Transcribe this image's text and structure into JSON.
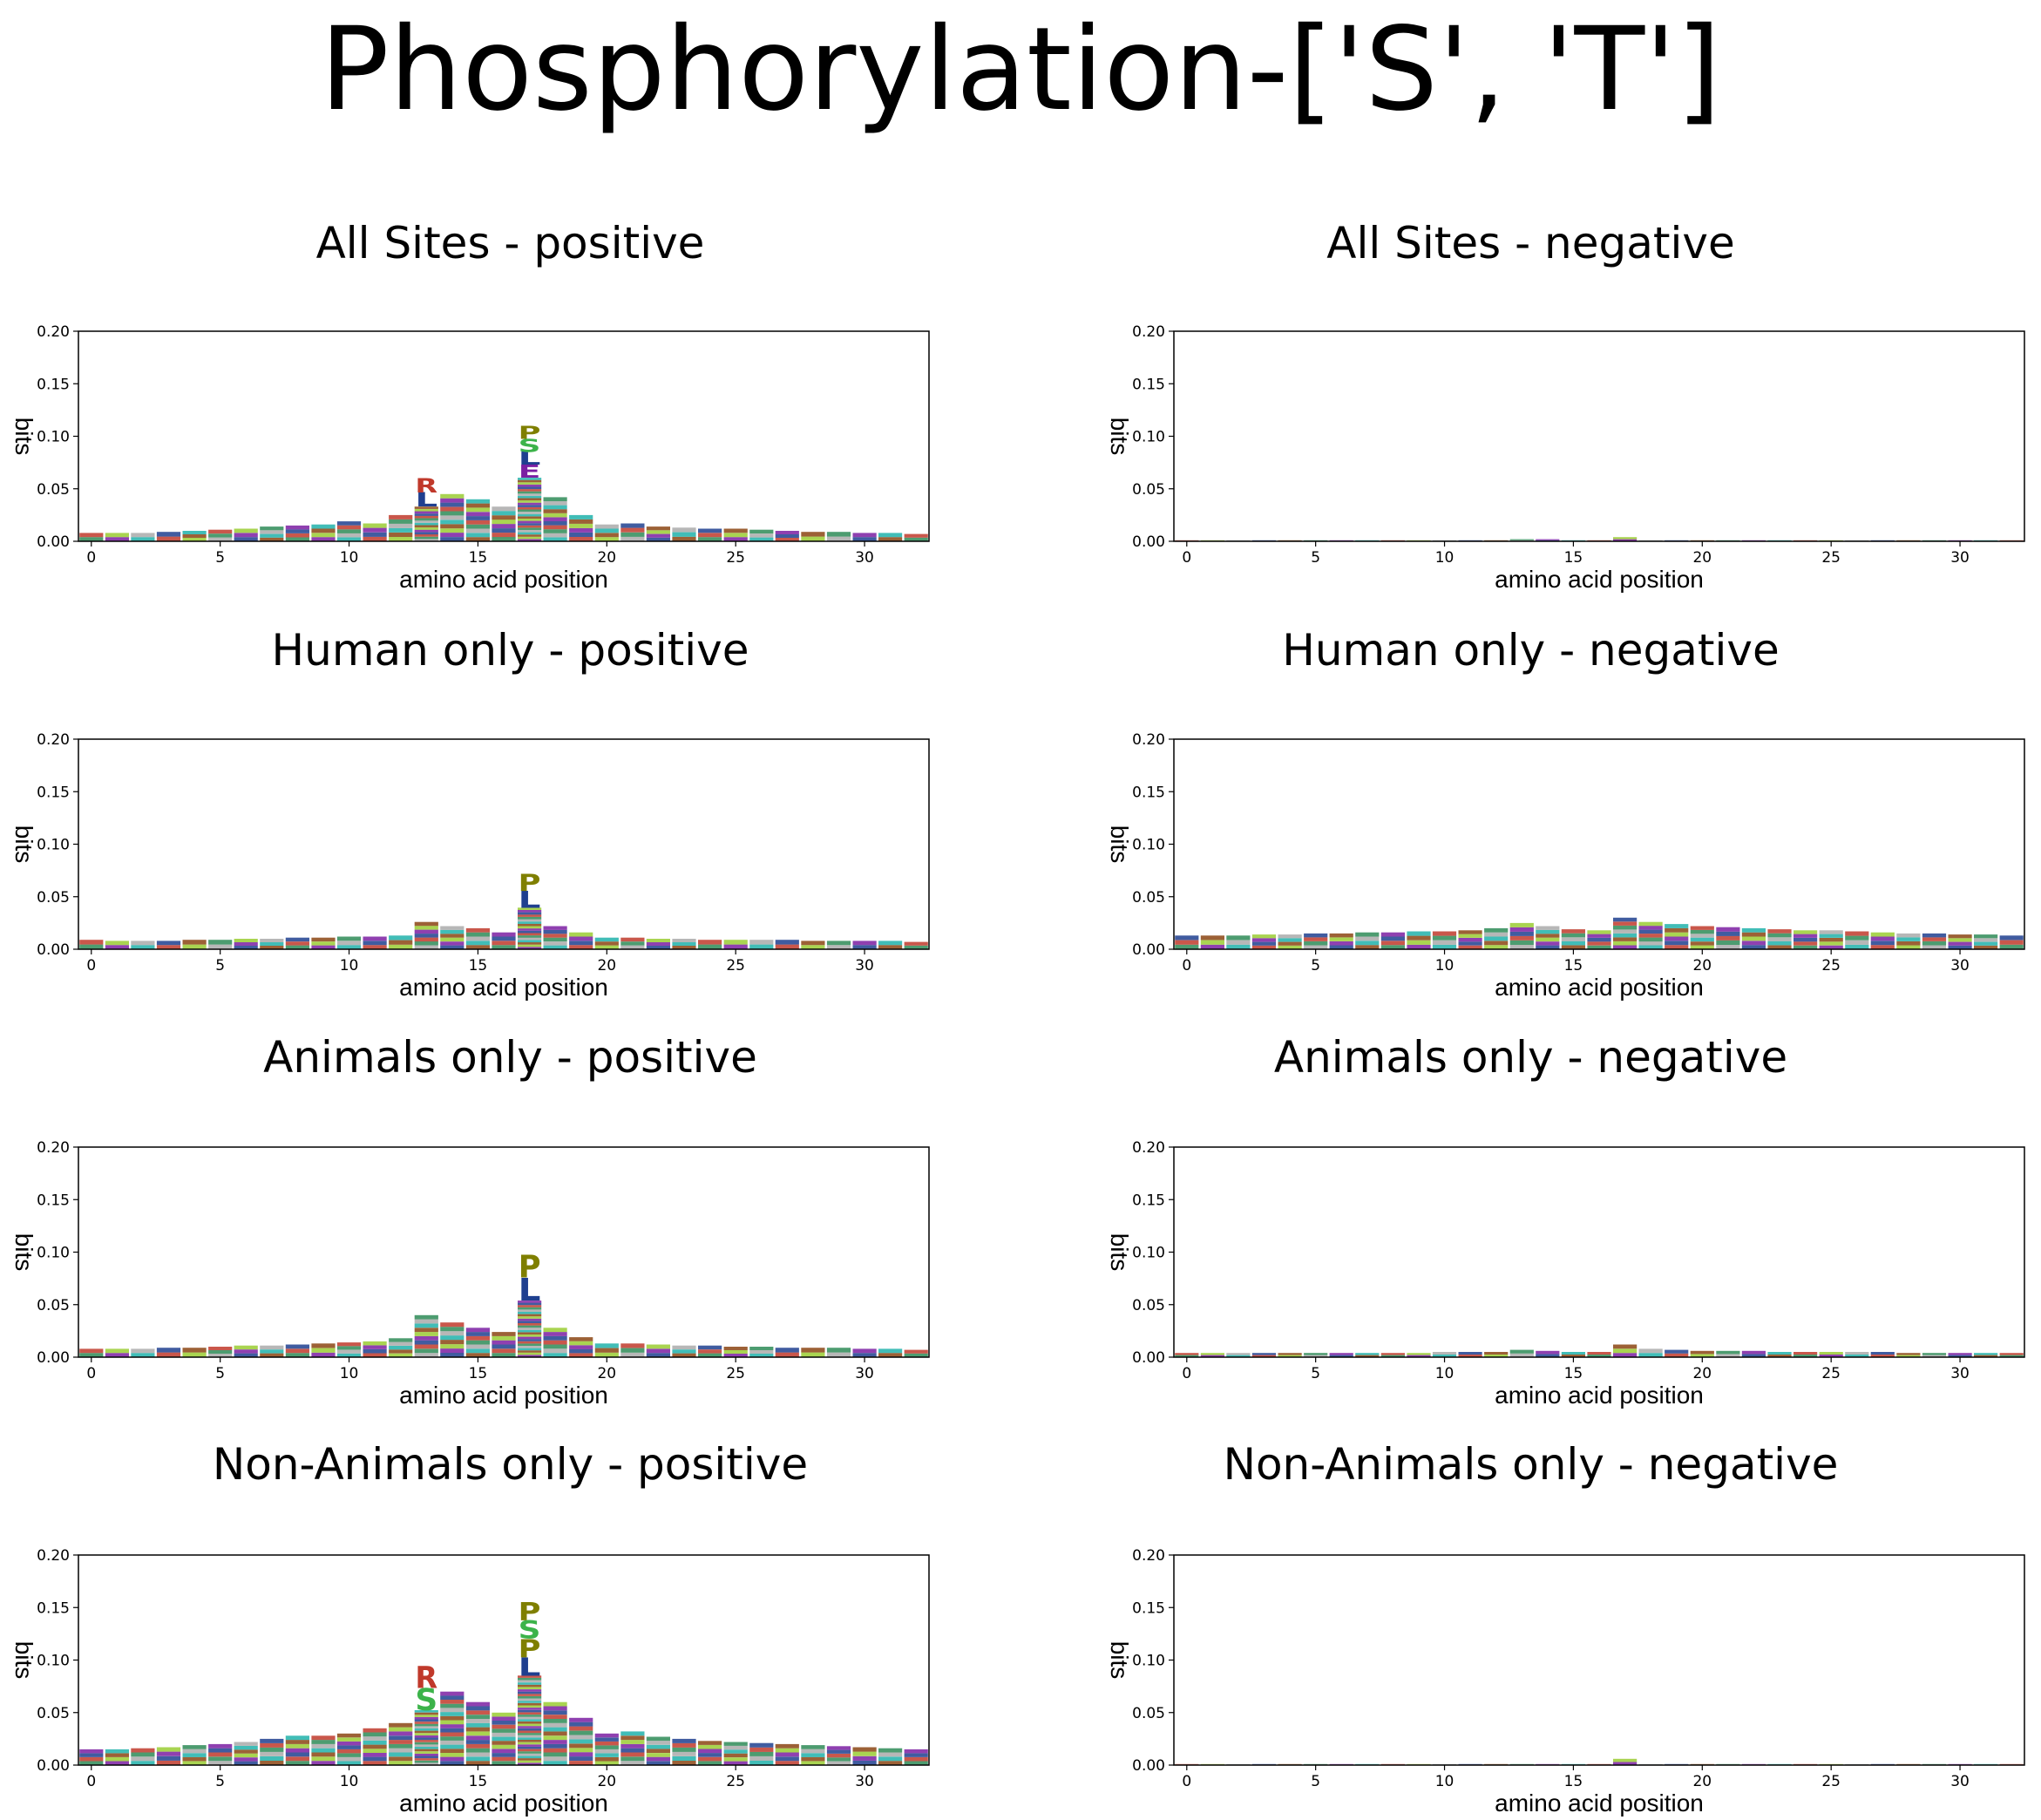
{
  "main_title": "Phosphorylation-['S', 'T']",
  "colors": {
    "P": "#7f7f00",
    "S": "#3cb34a",
    "L": "#1f3f8f",
    "E": "#7b1fa2",
    "R": "#c0392b",
    "K": "#c0392b",
    "G": "#3cb34a",
    "A": "#1f3f8f",
    "D": "#7b1fa2",
    "Q": "#1f77b4",
    "V": "#17a2b8",
    "filler": [
      "#2e8b57",
      "#c0392b",
      "#1f3f8f",
      "#7b1fa2",
      "#9acd32",
      "#8b4513",
      "#20b2aa",
      "#aaaaaa"
    ]
  },
  "chart_data": [
    {
      "type": "sequence-logo",
      "title": "All Sites - positive",
      "xlabel": "amino acid position",
      "ylabel": "bits",
      "xlim": [
        -0.5,
        32.5
      ],
      "ylim": [
        0,
        0.2
      ],
      "xticks": [
        "0",
        "5",
        "10",
        "15",
        "20",
        "25",
        "30"
      ],
      "yticks": [
        "0.00",
        "0.05",
        "0.10",
        "0.15",
        "0.20"
      ],
      "column_heights": [
        0.008,
        0.008,
        0.008,
        0.009,
        0.01,
        0.011,
        0.012,
        0.014,
        0.015,
        0.016,
        0.019,
        0.017,
        0.025,
        0.06,
        0.045,
        0.04,
        0.033,
        0.11,
        0.042,
        0.025,
        0.016,
        0.017,
        0.014,
        0.013,
        0.012,
        0.012,
        0.011,
        0.01,
        0.009,
        0.009,
        0.008,
        0.008,
        0.007
      ],
      "top_letters": [
        {
          "pos": 13,
          "letters": [
            "R",
            "L"
          ]
        },
        {
          "pos": 17,
          "letters": [
            "P",
            "S",
            "L",
            "E"
          ]
        }
      ]
    },
    {
      "type": "sequence-logo",
      "title": "All Sites - negative",
      "xlabel": "amino acid position",
      "ylabel": "bits",
      "xlim": [
        -0.5,
        32.5
      ],
      "ylim": [
        0,
        0.2
      ],
      "xticks": [
        "0",
        "5",
        "10",
        "15",
        "20",
        "25",
        "30"
      ],
      "yticks": [
        "0.00",
        "0.05",
        "0.10",
        "0.15",
        "0.20"
      ],
      "column_heights": [
        0.001,
        0.001,
        0.001,
        0.001,
        0.001,
        0.001,
        0.001,
        0.001,
        0.001,
        0.001,
        0.001,
        0.001,
        0.001,
        0.002,
        0.002,
        0.001,
        0.001,
        0.004,
        0.001,
        0.001,
        0.001,
        0.001,
        0.001,
        0.001,
        0.001,
        0.001,
        0.001,
        0.001,
        0.001,
        0.001,
        0.001,
        0.001,
        0.001
      ],
      "top_letters": []
    },
    {
      "type": "sequence-logo",
      "title": "Human only - positive",
      "xlabel": "amino acid position",
      "ylabel": "bits",
      "xlim": [
        -0.5,
        32.5
      ],
      "ylim": [
        0,
        0.2
      ],
      "xticks": [
        "0",
        "5",
        "10",
        "15",
        "20",
        "25",
        "30"
      ],
      "yticks": [
        "0.00",
        "0.05",
        "0.10",
        "0.15",
        "0.20"
      ],
      "column_heights": [
        0.009,
        0.008,
        0.008,
        0.008,
        0.009,
        0.009,
        0.01,
        0.01,
        0.011,
        0.011,
        0.012,
        0.012,
        0.013,
        0.026,
        0.022,
        0.02,
        0.016,
        0.072,
        0.022,
        0.016,
        0.011,
        0.011,
        0.01,
        0.01,
        0.009,
        0.009,
        0.009,
        0.009,
        0.008,
        0.008,
        0.008,
        0.008,
        0.007
      ],
      "top_letters": [
        {
          "pos": 17,
          "letters": [
            "P",
            "L"
          ]
        }
      ]
    },
    {
      "type": "sequence-logo",
      "title": "Human only - negative",
      "xlabel": "amino acid position",
      "ylabel": "bits",
      "xlim": [
        -0.5,
        32.5
      ],
      "ylim": [
        0,
        0.2
      ],
      "xticks": [
        "0",
        "5",
        "10",
        "15",
        "20",
        "25",
        "30"
      ],
      "yticks": [
        "0.00",
        "0.05",
        "0.10",
        "0.15",
        "0.20"
      ],
      "column_heights": [
        0.013,
        0.013,
        0.013,
        0.014,
        0.014,
        0.015,
        0.015,
        0.016,
        0.016,
        0.017,
        0.017,
        0.018,
        0.02,
        0.025,
        0.022,
        0.019,
        0.018,
        0.03,
        0.026,
        0.024,
        0.022,
        0.021,
        0.02,
        0.019,
        0.018,
        0.018,
        0.017,
        0.016,
        0.015,
        0.015,
        0.014,
        0.014,
        0.013
      ],
      "top_letters": []
    },
    {
      "type": "sequence-logo",
      "title": "Animals only - positive",
      "xlabel": "amino acid position",
      "ylabel": "bits",
      "xlim": [
        -0.5,
        32.5
      ],
      "ylim": [
        0,
        0.2
      ],
      "xticks": [
        "0",
        "5",
        "10",
        "15",
        "20",
        "25",
        "30"
      ],
      "yticks": [
        "0.00",
        "0.05",
        "0.10",
        "0.15",
        "0.20"
      ],
      "column_heights": [
        0.008,
        0.008,
        0.008,
        0.009,
        0.009,
        0.01,
        0.011,
        0.011,
        0.012,
        0.013,
        0.014,
        0.015,
        0.018,
        0.04,
        0.033,
        0.028,
        0.024,
        0.098,
        0.028,
        0.019,
        0.013,
        0.013,
        0.012,
        0.011,
        0.011,
        0.01,
        0.01,
        0.009,
        0.009,
        0.009,
        0.008,
        0.008,
        0.007
      ],
      "top_letters": [
        {
          "pos": 17,
          "letters": [
            "P",
            "L"
          ]
        }
      ]
    },
    {
      "type": "sequence-logo",
      "title": "Animals only - negative",
      "xlabel": "amino acid position",
      "ylabel": "bits",
      "xlim": [
        -0.5,
        32.5
      ],
      "ylim": [
        0,
        0.2
      ],
      "xticks": [
        "0",
        "5",
        "10",
        "15",
        "20",
        "25",
        "30"
      ],
      "yticks": [
        "0.00",
        "0.05",
        "0.10",
        "0.15",
        "0.20"
      ],
      "column_heights": [
        0.004,
        0.004,
        0.004,
        0.004,
        0.004,
        0.004,
        0.004,
        0.004,
        0.004,
        0.004,
        0.005,
        0.005,
        0.005,
        0.007,
        0.006,
        0.005,
        0.005,
        0.012,
        0.008,
        0.007,
        0.006,
        0.006,
        0.006,
        0.005,
        0.005,
        0.005,
        0.005,
        0.005,
        0.004,
        0.004,
        0.004,
        0.004,
        0.004
      ],
      "top_letters": []
    },
    {
      "type": "sequence-logo",
      "title": "Non-Animals only - positive",
      "xlabel": "amino acid position",
      "ylabel": "bits",
      "xlim": [
        -0.5,
        32.5
      ],
      "ylim": [
        0,
        0.2
      ],
      "xticks": [
        "0",
        "5",
        "10",
        "15",
        "20",
        "25",
        "30"
      ],
      "yticks": [
        "0.00",
        "0.05",
        "0.10",
        "0.15",
        "0.20"
      ],
      "column_heights": [
        0.015,
        0.015,
        0.016,
        0.017,
        0.019,
        0.02,
        0.022,
        0.025,
        0.028,
        0.028,
        0.03,
        0.035,
        0.04,
        0.095,
        0.07,
        0.06,
        0.05,
        0.155,
        0.06,
        0.045,
        0.03,
        0.032,
        0.027,
        0.025,
        0.023,
        0.022,
        0.021,
        0.02,
        0.019,
        0.018,
        0.017,
        0.016,
        0.015
      ],
      "top_letters": [
        {
          "pos": 13,
          "letters": [
            "R",
            "S"
          ]
        },
        {
          "pos": 17,
          "letters": [
            "P",
            "S",
            "P",
            "L"
          ]
        }
      ]
    },
    {
      "type": "sequence-logo",
      "title": "Non-Animals only - negative",
      "xlabel": "amino acid position",
      "ylabel": "bits",
      "xlim": [
        -0.5,
        32.5
      ],
      "ylim": [
        0,
        0.2
      ],
      "xticks": [
        "0",
        "5",
        "10",
        "15",
        "20",
        "25",
        "30"
      ],
      "yticks": [
        "0.00",
        "0.05",
        "0.10",
        "0.15",
        "0.20"
      ],
      "column_heights": [
        0.001,
        0.001,
        0.001,
        0.001,
        0.001,
        0.001,
        0.001,
        0.001,
        0.001,
        0.001,
        0.001,
        0.001,
        0.001,
        0.001,
        0.001,
        0.001,
        0.001,
        0.006,
        0.001,
        0.001,
        0.001,
        0.001,
        0.001,
        0.001,
        0.001,
        0.001,
        0.001,
        0.001,
        0.001,
        0.001,
        0.001,
        0.001,
        0.001
      ],
      "top_letters": []
    }
  ]
}
